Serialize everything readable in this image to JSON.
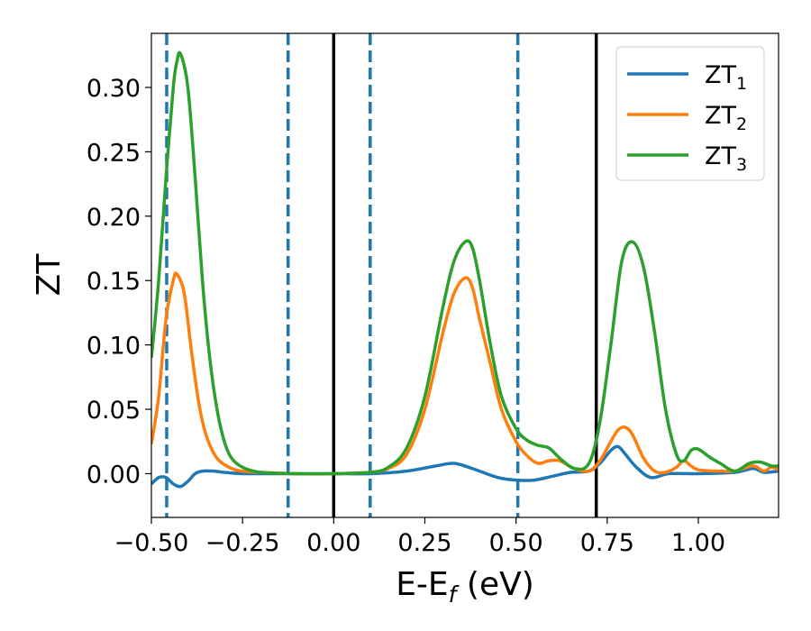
{
  "chart_data": {
    "type": "line",
    "title": "",
    "xlabel": {
      "main": "E-E",
      "sub": "f",
      "suffix": " (eV)"
    },
    "ylabel": "ZT",
    "xlim": [
      -0.5,
      1.22
    ],
    "ylim": [
      -0.034,
      0.342
    ],
    "x_ticks": [
      {
        "value": -0.5,
        "label": "−0.50"
      },
      {
        "value": -0.25,
        "label": "−0.25"
      },
      {
        "value": 0.0,
        "label": "0.00"
      },
      {
        "value": 0.25,
        "label": "0.25"
      },
      {
        "value": 0.5,
        "label": "0.50"
      },
      {
        "value": 0.75,
        "label": "0.75"
      },
      {
        "value": 1.0,
        "label": "1.00"
      }
    ],
    "y_ticks": [
      {
        "value": 0.0,
        "label": "0.00"
      },
      {
        "value": 0.05,
        "label": "0.05"
      },
      {
        "value": 0.1,
        "label": "0.10"
      },
      {
        "value": 0.15,
        "label": "0.15"
      },
      {
        "value": 0.2,
        "label": "0.20"
      },
      {
        "value": 0.25,
        "label": "0.25"
      },
      {
        "value": 0.3,
        "label": "0.30"
      }
    ],
    "grid": false,
    "legend_position": "top-right",
    "vertical_lines": [
      {
        "x": -0.458,
        "style": "dashed",
        "color": "#1f77b4"
      },
      {
        "x": -0.125,
        "style": "dashed",
        "color": "#1f77b4"
      },
      {
        "x": 0.0,
        "style": "solid",
        "color": "#000000"
      },
      {
        "x": 0.1,
        "style": "dashed",
        "color": "#1f77b4"
      },
      {
        "x": 0.505,
        "style": "dashed",
        "color": "#1f77b4"
      },
      {
        "x": 0.72,
        "style": "solid",
        "color": "#000000"
      }
    ],
    "series": [
      {
        "name": "ZT",
        "name_sub": "1",
        "color": "#1f77b4",
        "x": [
          -0.5,
          -0.48,
          -0.46,
          -0.44,
          -0.42,
          -0.4,
          -0.38,
          -0.36,
          -0.33,
          -0.3,
          -0.25,
          -0.2,
          -0.1,
          0.0,
          0.1,
          0.2,
          0.28,
          0.33,
          0.38,
          0.45,
          0.5,
          0.55,
          0.6,
          0.65,
          0.7,
          0.73,
          0.76,
          0.78,
          0.8,
          0.83,
          0.87,
          0.92,
          1.0,
          1.1,
          1.15,
          1.18,
          1.22
        ],
        "y": [
          -0.008,
          -0.003,
          -0.003,
          -0.008,
          -0.01,
          -0.006,
          0.0,
          0.002,
          0.002,
          0.001,
          0.0,
          0.0,
          0.0,
          0.0,
          0.0,
          0.002,
          0.006,
          0.008,
          0.004,
          -0.003,
          -0.005,
          -0.005,
          -0.002,
          0.001,
          0.002,
          0.008,
          0.018,
          0.021,
          0.015,
          0.005,
          -0.003,
          0.0,
          0.0,
          0.001,
          0.004,
          0.001,
          0.002
        ]
      },
      {
        "name": "ZT",
        "name_sub": "2",
        "color": "#ff7f0e",
        "x": [
          -0.5,
          -0.48,
          -0.46,
          -0.44,
          -0.43,
          -0.41,
          -0.39,
          -0.37,
          -0.35,
          -0.32,
          -0.28,
          -0.25,
          -0.2,
          -0.1,
          0.0,
          0.1,
          0.15,
          0.2,
          0.25,
          0.3,
          0.33,
          0.36,
          0.38,
          0.4,
          0.43,
          0.46,
          0.5,
          0.53,
          0.56,
          0.59,
          0.62,
          0.66,
          0.7,
          0.73,
          0.76,
          0.78,
          0.8,
          0.82,
          0.85,
          0.88,
          0.91,
          0.94,
          0.96,
          0.98,
          1.0,
          1.05,
          1.1,
          1.15,
          1.18,
          1.2,
          1.22
        ],
        "y": [
          0.023,
          0.06,
          0.12,
          0.15,
          0.155,
          0.14,
          0.095,
          0.055,
          0.03,
          0.012,
          0.004,
          0.002,
          0.001,
          0.0,
          0.0,
          0.001,
          0.004,
          0.015,
          0.05,
          0.11,
          0.14,
          0.152,
          0.145,
          0.12,
          0.085,
          0.05,
          0.025,
          0.014,
          0.008,
          0.01,
          0.01,
          0.004,
          0.002,
          0.01,
          0.025,
          0.034,
          0.036,
          0.03,
          0.012,
          0.002,
          0.001,
          0.005,
          0.01,
          0.006,
          0.003,
          0.002,
          0.002,
          0.006,
          0.002,
          0.005,
          0.003
        ]
      },
      {
        "name": "ZT",
        "name_sub": "3",
        "color": "#2ca02c",
        "x": [
          -0.5,
          -0.48,
          -0.46,
          -0.44,
          -0.43,
          -0.42,
          -0.4,
          -0.38,
          -0.36,
          -0.34,
          -0.32,
          -0.3,
          -0.28,
          -0.25,
          -0.2,
          -0.1,
          0.0,
          0.1,
          0.15,
          0.2,
          0.25,
          0.3,
          0.33,
          0.36,
          0.38,
          0.4,
          0.43,
          0.46,
          0.5,
          0.53,
          0.56,
          0.59,
          0.62,
          0.66,
          0.7,
          0.73,
          0.76,
          0.79,
          0.82,
          0.85,
          0.88,
          0.91,
          0.94,
          0.96,
          0.98,
          1.0,
          1.03,
          1.06,
          1.1,
          1.14,
          1.17,
          1.2,
          1.22
        ],
        "y": [
          0.09,
          0.15,
          0.23,
          0.3,
          0.32,
          0.326,
          0.3,
          0.23,
          0.15,
          0.09,
          0.05,
          0.025,
          0.012,
          0.005,
          0.001,
          0.0,
          0.0,
          0.001,
          0.005,
          0.02,
          0.06,
          0.13,
          0.165,
          0.18,
          0.176,
          0.15,
          0.1,
          0.06,
          0.035,
          0.026,
          0.022,
          0.02,
          0.012,
          0.004,
          0.008,
          0.04,
          0.1,
          0.165,
          0.18,
          0.16,
          0.11,
          0.05,
          0.015,
          0.01,
          0.018,
          0.019,
          0.013,
          0.008,
          0.002,
          0.008,
          0.009,
          0.006,
          0.006
        ]
      }
    ]
  }
}
